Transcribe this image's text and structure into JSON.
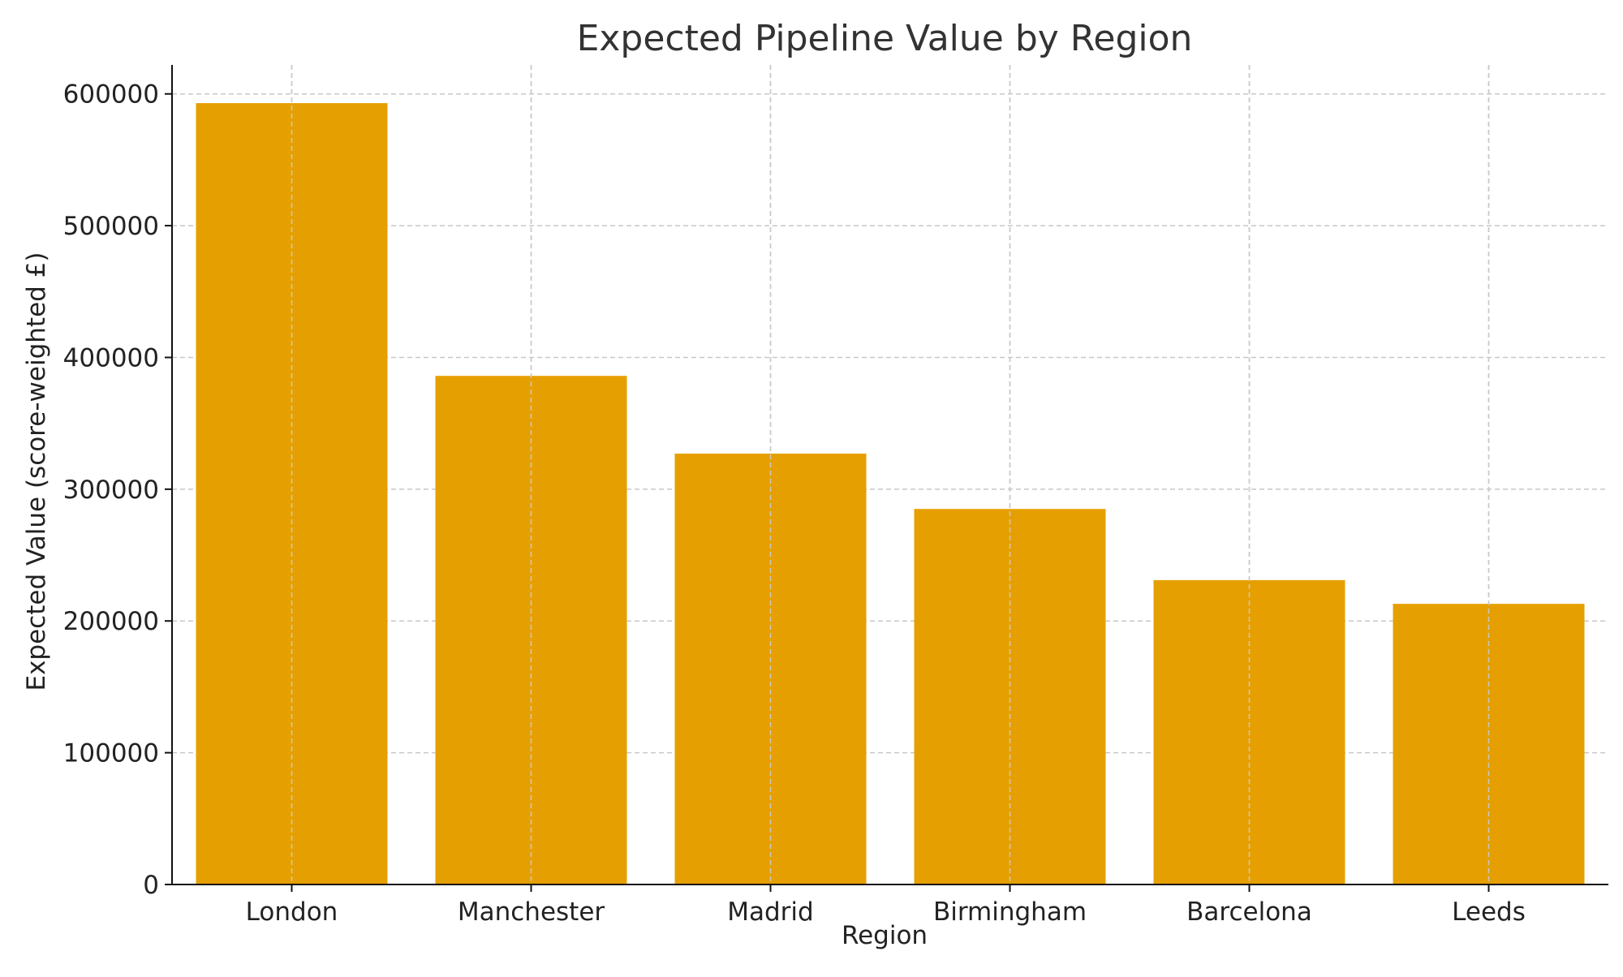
{
  "chart_data": {
    "type": "bar",
    "title": "Expected Pipeline Value by Region",
    "xlabel": "Region",
    "ylabel": "Expected Value (score-weighted £)",
    "categories": [
      "London",
      "Manchester",
      "Madrid",
      "Birmingham",
      "Barcelona",
      "Leeds"
    ],
    "values": [
      593000,
      386000,
      327000,
      285000,
      231000,
      213000
    ],
    "ylim": [
      0,
      622000
    ],
    "yticks": [
      0,
      100000,
      200000,
      300000,
      400000,
      500000,
      600000
    ],
    "ytick_labels": [
      "0",
      "100000",
      "200000",
      "300000",
      "400000",
      "500000",
      "600000"
    ],
    "bar_color": "#E69F00",
    "grid": true,
    "legend": "none"
  }
}
